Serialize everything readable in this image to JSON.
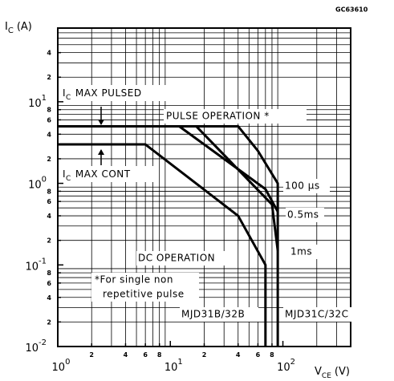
{
  "chart_data": {
    "type": "line",
    "code": "GC63610",
    "y_label": {
      "text": "I",
      "sub": "C",
      "rest": "(A)"
    },
    "x_label": {
      "text": "V",
      "sub": "CE",
      "rest": "(V)"
    },
    "xscale": "log",
    "yscale": "log",
    "xlim": [
      1,
      400
    ],
    "ylim": [
      0.01,
      80
    ],
    "grid": true,
    "xticks": [
      {
        "value": 1,
        "label": "10",
        "exponent": "0"
      },
      2,
      4,
      6,
      8,
      {
        "value": 10,
        "label": "10",
        "exponent": "1"
      },
      {
        "value": 20,
        "label": "2"
      },
      {
        "value": 40,
        "label": "4"
      },
      {
        "value": 60,
        "label": "6"
      },
      {
        "value": 80,
        "label": "8"
      },
      {
        "value": 100,
        "label": "10",
        "exponent": "2"
      }
    ],
    "yticks": [
      {
        "value": 0.01,
        "label": "10",
        "exponent": "-2"
      },
      {
        "value": 0.02,
        "label": "2"
      },
      {
        "value": 0.04,
        "label": "4"
      },
      {
        "value": 0.06,
        "label": "6"
      },
      {
        "value": 0.08,
        "label": "8"
      },
      {
        "value": 0.1,
        "label": "10",
        "exponent": "-1"
      },
      {
        "value": 0.2,
        "label": "2"
      },
      {
        "value": 0.4,
        "label": "4"
      },
      {
        "value": 0.6,
        "label": "6"
      },
      {
        "value": 0.8,
        "label": "8"
      },
      {
        "value": 1,
        "label": "10",
        "exponent": "0"
      },
      2,
      4,
      6,
      8,
      {
        "value": 10,
        "label": "10",
        "exponent": "1"
      },
      {
        "value": 20,
        "label": "2"
      },
      {
        "value": 40,
        "label": "4"
      }
    ],
    "xminor": [
      2,
      3,
      4,
      5,
      6,
      7,
      8,
      9,
      20,
      30,
      40,
      50,
      60,
      70,
      80,
      90,
      200,
      300,
      400
    ],
    "yminor": [
      0.02,
      0.03,
      0.04,
      0.05,
      0.06,
      0.07,
      0.08,
      0.09,
      0.2,
      0.3,
      0.4,
      0.5,
      0.6,
      0.7,
      0.8,
      0.9,
      2,
      3,
      4,
      5,
      6,
      7,
      8,
      9,
      20,
      30,
      40,
      50,
      60,
      70,
      80
    ],
    "series": [
      {
        "name": "100 µs",
        "color": "#000000",
        "x": [
          1,
          40,
          60,
          90,
          90
        ],
        "values": [
          5,
          5,
          2.5,
          1,
          0.01
        ]
      },
      {
        "name": "0.5ms",
        "color": "#000000",
        "x": [
          12,
          70,
          90
        ],
        "values": [
          5,
          0.85,
          0.45
        ]
      },
      {
        "name": "1ms",
        "color": "#000000",
        "x": [
          17,
          80,
          90
        ],
        "values": [
          5,
          0.55,
          0.15
        ]
      },
      {
        "name": "DC OPERATION",
        "color": "#000000",
        "x": [
          1,
          6,
          40,
          70,
          70
        ],
        "values": [
          3,
          3,
          0.4,
          0.1,
          0.01
        ]
      }
    ],
    "annotations": {
      "pulsed": {
        "text": "I",
        "sub": "C",
        "rest": "MAX PULSED"
      },
      "cont": {
        "text": "I",
        "sub": "C",
        "rest": "MAX CONT"
      },
      "pulse_op": "PULSE OPERATION *",
      "note": [
        "*For single non",
        "repetitive pulse"
      ],
      "b_label": "MJD31B/32B",
      "c_label": "MJD31C/32C"
    }
  }
}
